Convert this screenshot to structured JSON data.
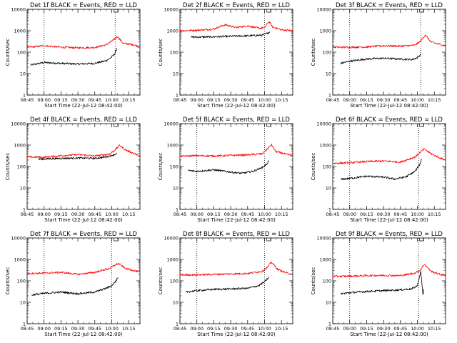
{
  "figure": {
    "panel_titles": [
      "Det 1f BLACK = Events, RED = LLD",
      "Det 2f BLACK = Events, RED = LLD",
      "Det 3f BLACK = Events, RED = LLD",
      "Det 4f BLACK = Events, RED = LLD",
      "Det 5f BLACK = Events, RED = LLD",
      "Det 6f BLACK = Events, RED = LLD",
      "Det 7f BLACK = Events, RED = LLD",
      "Det 8f BLACK = Events, RED = LLD",
      "Det 9f BLACK = Events, RED = LLD"
    ],
    "xlabel": "Start Time (22-Jul-12 08:42:00)",
    "ylabel": "Counts/sec",
    "xticks": [
      "08:45",
      "09:00",
      "09:15",
      "09:30",
      "09:45",
      "10:00",
      "10:15"
    ],
    "yticks": [
      "1",
      "10",
      "100",
      "1000",
      "10000"
    ],
    "colors": {
      "events": "#000000",
      "lld": "#ff0000",
      "axes": "#000000"
    }
  },
  "chart_data": [
    {
      "type": "line",
      "title": "Det 1f BLACK = Events, RED = LLD",
      "xlabel": "Start Time (22-Jul-12 08:42:00)",
      "ylabel": "Counts/sec",
      "y_scale": "log",
      "ylim": [
        1,
        10000
      ],
      "xlim": [
        "08:45",
        "10:25"
      ],
      "markers_dotted": [
        "09:00",
        "10:03"
      ],
      "series": [
        {
          "name": "BLACK = Events",
          "color": "#000000",
          "start": "08:48",
          "end": "10:05",
          "points": [
            [
              "08:48",
              25
            ],
            [
              "09:00",
              33
            ],
            [
              "09:15",
              30
            ],
            [
              "09:30",
              28
            ],
            [
              "09:45",
              30
            ],
            [
              "09:55",
              40
            ],
            [
              "10:00",
              60
            ],
            [
              "10:03",
              90
            ],
            [
              "10:05",
              180
            ]
          ]
        },
        {
          "name": "RED = LLD",
          "color": "#ff0000",
          "start": "08:45",
          "end": "10:25",
          "points": [
            [
              "08:45",
              165
            ],
            [
              "09:00",
              200
            ],
            [
              "09:15",
              170
            ],
            [
              "09:30",
              160
            ],
            [
              "09:45",
              165
            ],
            [
              "09:55",
              220
            ],
            [
              "10:02",
              390
            ],
            [
              "10:05",
              550
            ],
            [
              "10:10",
              260
            ],
            [
              "10:20",
              220
            ],
            [
              "10:25",
              170
            ]
          ]
        }
      ]
    },
    {
      "type": "line",
      "title": "Det 2f BLACK = Events, RED = LLD",
      "xlabel": "Start Time (22-Jul-12 08:42:00)",
      "ylabel": "Counts/sec",
      "y_scale": "log",
      "ylim": [
        1,
        10000
      ],
      "xlim": [
        "08:45",
        "10:25"
      ],
      "markers_dotted": [
        "10:00"
      ],
      "series": [
        {
          "name": "BLACK = Events",
          "color": "#000000",
          "start": "08:55",
          "end": "10:05",
          "points": [
            [
              "08:55",
              500
            ],
            [
              "09:15",
              520
            ],
            [
              "09:30",
              550
            ],
            [
              "09:45",
              580
            ],
            [
              "09:58",
              620
            ],
            [
              "10:02",
              750
            ],
            [
              "10:05",
              900
            ]
          ]
        },
        {
          "name": "RED = LLD",
          "color": "#ff0000",
          "start": "08:45",
          "end": "10:25",
          "points": [
            [
              "08:45",
              1000
            ],
            [
              "09:00",
              1050
            ],
            [
              "09:15",
              1200
            ],
            [
              "09:25",
              1900
            ],
            [
              "09:35",
              1400
            ],
            [
              "09:45",
              1700
            ],
            [
              "09:55",
              1300
            ],
            [
              "10:00",
              1400
            ],
            [
              "10:04",
              2700
            ],
            [
              "10:07",
              1500
            ],
            [
              "10:15",
              1100
            ],
            [
              "10:25",
              1000
            ]
          ]
        }
      ]
    },
    {
      "type": "line",
      "title": "Det 3f BLACK = Events, RED = LLD",
      "xlabel": "Start Time (22-Jul-12 08:42:00)",
      "ylabel": "Counts/sec",
      "y_scale": "log",
      "ylim": [
        1,
        10000
      ],
      "xlim": [
        "08:45",
        "10:25"
      ],
      "markers_dotted": [
        "09:00",
        "10:03"
      ],
      "series": [
        {
          "name": "BLACK = Events",
          "color": "#000000",
          "start": "08:52",
          "end": "10:03",
          "points": [
            [
              "08:52",
              30
            ],
            [
              "09:00",
              38
            ],
            [
              "09:15",
              48
            ],
            [
              "09:30",
              52
            ],
            [
              "09:45",
              48
            ],
            [
              "09:55",
              45
            ],
            [
              "10:00",
              55
            ],
            [
              "10:03",
              80
            ]
          ]
        },
        {
          "name": "RED = LLD",
          "color": "#ff0000",
          "start": "08:45",
          "end": "10:25",
          "points": [
            [
              "08:45",
              170
            ],
            [
              "09:00",
              170
            ],
            [
              "09:15",
              175
            ],
            [
              "09:30",
              200
            ],
            [
              "09:45",
              190
            ],
            [
              "09:58",
              210
            ],
            [
              "10:03",
              330
            ],
            [
              "10:07",
              650
            ],
            [
              "10:12",
              300
            ],
            [
              "10:20",
              230
            ],
            [
              "10:25",
              200
            ]
          ]
        }
      ]
    },
    {
      "type": "line",
      "title": "Det 4f BLACK = Events, RED = LLD",
      "xlabel": "Start Time (22-Jul-12 08:42:00)",
      "ylabel": "Counts/sec",
      "y_scale": "log",
      "ylim": [
        1,
        10000
      ],
      "xlim": [
        "08:45",
        "10:25"
      ],
      "markers_dotted": [],
      "series": [
        {
          "name": "BLACK = Events",
          "color": "#000000",
          "start": "08:55",
          "end": "10:05",
          "points": [
            [
              "08:55",
              220
            ],
            [
              "09:15",
              240
            ],
            [
              "09:30",
              250
            ],
            [
              "09:45",
              240
            ],
            [
              "09:55",
              280
            ],
            [
              "10:00",
              330
            ],
            [
              "10:05",
              400
            ]
          ]
        },
        {
          "name": "RED = LLD",
          "color": "#ff0000",
          "start": "08:45",
          "end": "10:25",
          "points": [
            [
              "08:45",
              280
            ],
            [
              "09:00",
              270
            ],
            [
              "09:15",
              320
            ],
            [
              "09:30",
              360
            ],
            [
              "09:45",
              310
            ],
            [
              "09:58",
              380
            ],
            [
              "10:03",
              600
            ],
            [
              "10:07",
              1000
            ],
            [
              "10:12",
              600
            ],
            [
              "10:20",
              400
            ],
            [
              "10:25",
              300
            ]
          ]
        }
      ]
    },
    {
      "type": "line",
      "title": "Det 5f BLACK = Events, RED = LLD",
      "xlabel": "Start Time (22-Jul-12 08:42:00)",
      "ylabel": "Counts/sec",
      "y_scale": "log",
      "ylim": [
        1,
        10000
      ],
      "xlim": [
        "08:45",
        "10:25"
      ],
      "markers_dotted": [
        "09:00",
        "10:00"
      ],
      "series": [
        {
          "name": "BLACK = Events",
          "color": "#000000",
          "start": "08:52",
          "end": "10:04",
          "points": [
            [
              "08:52",
              65
            ],
            [
              "09:00",
              60
            ],
            [
              "09:15",
              70
            ],
            [
              "09:30",
              55
            ],
            [
              "09:40",
              48
            ],
            [
              "09:50",
              60
            ],
            [
              "09:58",
              90
            ],
            [
              "10:02",
              130
            ],
            [
              "10:04",
              200
            ]
          ]
        },
        {
          "name": "RED = LLD",
          "color": "#ff0000",
          "start": "08:45",
          "end": "10:25",
          "points": [
            [
              "08:45",
              300
            ],
            [
              "09:00",
              320
            ],
            [
              "09:15",
              310
            ],
            [
              "09:30",
              330
            ],
            [
              "09:45",
              350
            ],
            [
              "09:58",
              390
            ],
            [
              "10:03",
              700
            ],
            [
              "10:06",
              1050
            ],
            [
              "10:10",
              500
            ],
            [
              "10:20",
              360
            ],
            [
              "10:25",
              320
            ]
          ]
        }
      ]
    },
    {
      "type": "line",
      "title": "Det 6f BLACK = Events, RED = LLD",
      "xlabel": "Start Time (22-Jul-12 08:42:00)",
      "ylabel": "Counts/sec",
      "y_scale": "log",
      "ylim": [
        1,
        10000
      ],
      "xlim": [
        "08:45",
        "10:25"
      ],
      "markers_dotted": [
        "09:00",
        "10:01"
      ],
      "series": [
        {
          "name": "BLACK = Events",
          "color": "#000000",
          "start": "08:52",
          "end": "10:04",
          "points": [
            [
              "08:52",
              25
            ],
            [
              "09:00",
              28
            ],
            [
              "09:15",
              35
            ],
            [
              "09:30",
              32
            ],
            [
              "09:40",
              26
            ],
            [
              "09:50",
              33
            ],
            [
              "09:58",
              60
            ],
            [
              "10:02",
              120
            ],
            [
              "10:04",
              250
            ]
          ]
        },
        {
          "name": "RED = LLD",
          "color": "#ff0000",
          "start": "08:45",
          "end": "10:25",
          "points": [
            [
              "08:45",
              140
            ],
            [
              "09:00",
              150
            ],
            [
              "09:15",
              170
            ],
            [
              "09:30",
              180
            ],
            [
              "09:45",
              160
            ],
            [
              "09:58",
              280
            ],
            [
              "10:03",
              480
            ],
            [
              "10:06",
              650
            ],
            [
              "10:12",
              400
            ],
            [
              "10:20",
              250
            ],
            [
              "10:25",
              200
            ]
          ]
        }
      ]
    },
    {
      "type": "line",
      "title": "Det 7f BLACK = Events, RED = LLD",
      "xlabel": "Start Time (22-Jul-12 08:42:00)",
      "ylabel": "Counts/sec",
      "y_scale": "log",
      "ylim": [
        1,
        10000
      ],
      "xlim": [
        "08:45",
        "10:25"
      ],
      "markers_dotted": [
        "09:00",
        "10:00"
      ],
      "series": [
        {
          "name": "BLACK = Events",
          "color": "#000000",
          "start": "08:49",
          "end": "10:06",
          "points": [
            [
              "08:49",
              22
            ],
            [
              "09:00",
              26
            ],
            [
              "09:15",
              30
            ],
            [
              "09:30",
              25
            ],
            [
              "09:45",
              30
            ],
            [
              "09:55",
              45
            ],
            [
              "10:00",
              60
            ],
            [
              "10:03",
              90
            ],
            [
              "10:06",
              150
            ]
          ]
        },
        {
          "name": "RED = LLD",
          "color": "#ff0000",
          "start": "08:45",
          "end": "10:25",
          "points": [
            [
              "08:45",
              220
            ],
            [
              "09:00",
              230
            ],
            [
              "09:15",
              250
            ],
            [
              "09:30",
              200
            ],
            [
              "09:45",
              250
            ],
            [
              "09:58",
              380
            ],
            [
              "10:03",
              550
            ],
            [
              "10:06",
              650
            ],
            [
              "10:12",
              380
            ],
            [
              "10:20",
              300
            ],
            [
              "10:25",
              250
            ]
          ]
        }
      ]
    },
    {
      "type": "line",
      "title": "Det 8f BLACK = Events, RED = LLD",
      "xlabel": "Start Time (22-Jul-12 08:42:00)",
      "ylabel": "Counts/sec",
      "y_scale": "log",
      "ylim": [
        1,
        10000
      ],
      "xlim": [
        "08:45",
        "10:25"
      ],
      "markers_dotted": [
        "09:00",
        "10:00"
      ],
      "series": [
        {
          "name": "BLACK = Events",
          "color": "#000000",
          "start": "08:50",
          "end": "10:04",
          "points": [
            [
              "08:50",
              30
            ],
            [
              "09:00",
              35
            ],
            [
              "09:15",
              40
            ],
            [
              "09:30",
              42
            ],
            [
              "09:45",
              45
            ],
            [
              "09:55",
              60
            ],
            [
              "10:00",
              90
            ],
            [
              "10:04",
              150
            ]
          ]
        },
        {
          "name": "RED = LLD",
          "color": "#ff0000",
          "start": "08:45",
          "end": "10:25",
          "points": [
            [
              "08:45",
              190
            ],
            [
              "09:00",
              190
            ],
            [
              "09:15",
              200
            ],
            [
              "09:30",
              210
            ],
            [
              "09:45",
              220
            ],
            [
              "09:58",
              280
            ],
            [
              "10:03",
              450
            ],
            [
              "10:06",
              750
            ],
            [
              "10:12",
              330
            ],
            [
              "10:20",
              230
            ],
            [
              "10:25",
              200
            ]
          ]
        }
      ]
    },
    {
      "type": "line",
      "title": "Det 9f BLACK = Events, RED = LLD",
      "xlabel": "Start Time (22-Jul-12 08:42:00)",
      "ylabel": "Counts/sec",
      "y_scale": "log",
      "ylim": [
        1,
        10000
      ],
      "xlim": [
        "08:45",
        "10:25"
      ],
      "markers_dotted": [
        "09:00",
        "10:01"
      ],
      "series": [
        {
          "name": "BLACK = Events",
          "color": "#000000",
          "start": "08:52",
          "end": "10:06",
          "points": [
            [
              "08:52",
              25
            ],
            [
              "09:00",
              28
            ],
            [
              "09:15",
              32
            ],
            [
              "09:30",
              35
            ],
            [
              "09:45",
              38
            ],
            [
              "09:55",
              42
            ],
            [
              "10:00",
              60
            ],
            [
              "10:03",
              280
            ],
            [
              "10:05",
              20
            ],
            [
              "10:06",
              45
            ]
          ]
        },
        {
          "name": "RED = LLD",
          "color": "#ff0000",
          "start": "08:45",
          "end": "10:25",
          "points": [
            [
              "08:45",
              160
            ],
            [
              "09:00",
              165
            ],
            [
              "09:15",
              175
            ],
            [
              "09:30",
              180
            ],
            [
              "09:45",
              175
            ],
            [
              "09:58",
              230
            ],
            [
              "10:03",
              330
            ],
            [
              "10:06",
              600
            ],
            [
              "10:12",
              280
            ],
            [
              "10:20",
              200
            ],
            [
              "10:25",
              180
            ]
          ]
        }
      ]
    }
  ]
}
